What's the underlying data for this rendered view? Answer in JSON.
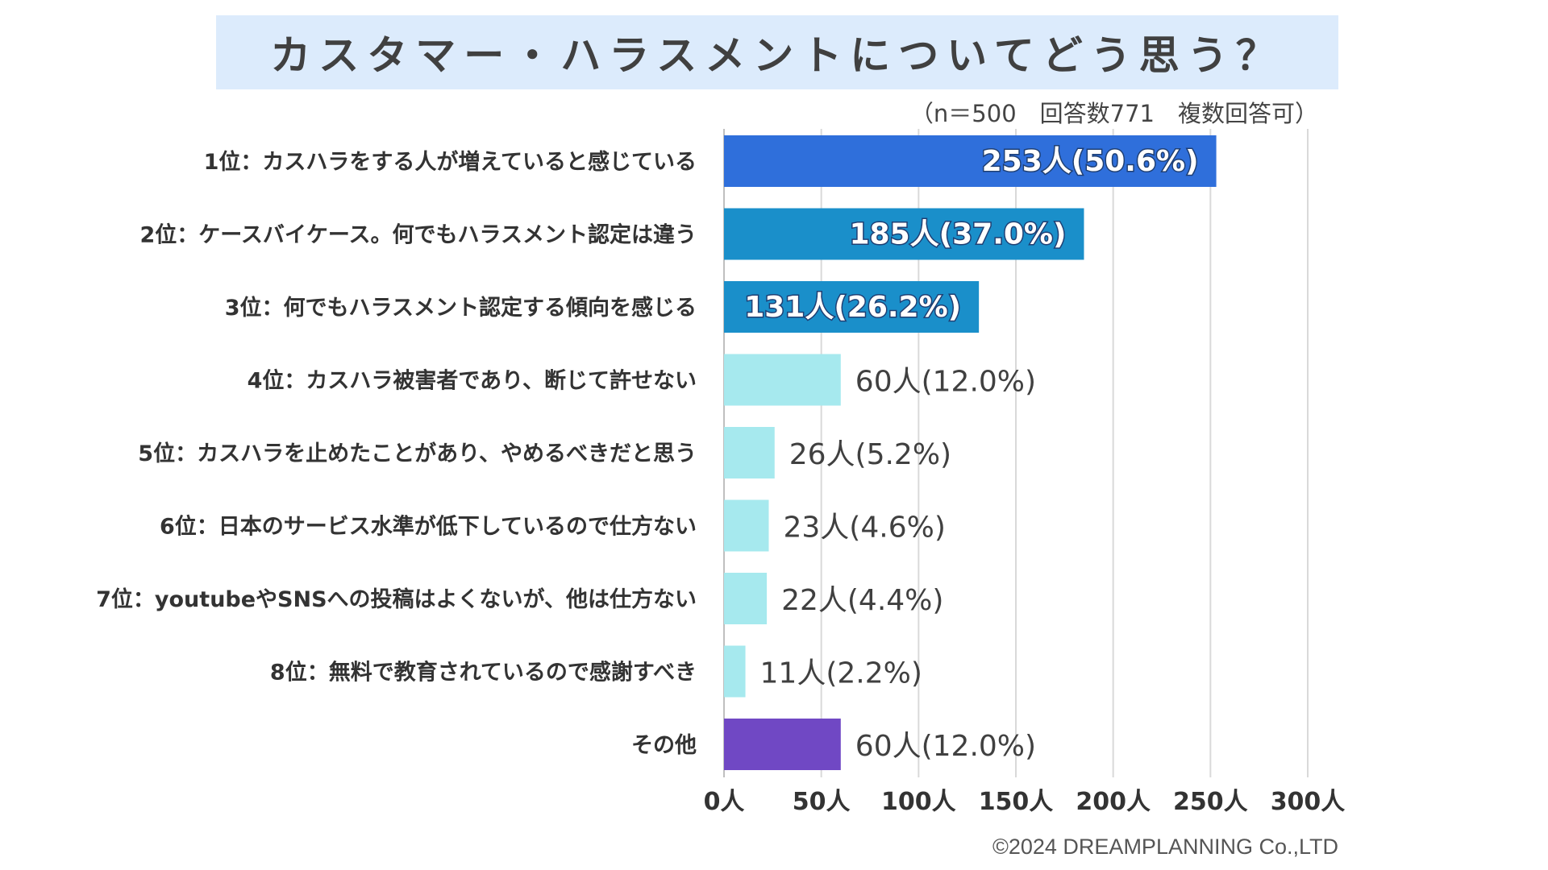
{
  "title": "カスタマー・ハラスメントについてどう思う？",
  "subtitle": "（n＝500　回答数771　複数回答可）",
  "copyright": "©2024 DREAMPLANNING Co.,LTD",
  "colors": {
    "rank1": "#2f6fdb",
    "rank2_3": "#1a8fca",
    "rest": "#a6e9ee",
    "other": "#7048c4",
    "grid": "#d9d9d9",
    "title_bg": "#dcebfc"
  },
  "chart_data": {
    "type": "bar",
    "orientation": "horizontal",
    "categories": [
      "1位：カスハラをする人が増えていると感じている",
      "2位：ケースバイケース。何でもハラスメント認定は違う",
      "3位：何でもハラスメント認定する傾向を感じる",
      "4位：カスハラ被害者であり、断じて許せない",
      "5位：カスハラを止めたことがあり、やめるべきだと思う",
      "6位：日本のサービス水準が低下しているので仕方ない",
      "7位：youtubeやSNSへの投稿はよくないが、他は仕方ない",
      "8位：無料で教育されているので感謝すべき",
      "その他"
    ],
    "values": [
      253,
      185,
      131,
      60,
      26,
      23,
      22,
      11,
      60
    ],
    "data_labels": [
      "253人(50.6%)",
      "185人(37.0%)",
      "131人(26.2%)",
      "60人(12.0%)",
      "26人(5.2%)",
      "23人(4.6%)",
      "22人(4.4%)",
      "11人(2.2%)",
      "60人(12.0%)"
    ],
    "bar_colors": [
      "#2f6fdb",
      "#1a8fca",
      "#1a8fca",
      "#a6e9ee",
      "#a6e9ee",
      "#a6e9ee",
      "#a6e9ee",
      "#a6e9ee",
      "#7048c4"
    ],
    "xlim": [
      0,
      300
    ],
    "xticks": [
      0,
      50,
      100,
      150,
      200,
      250,
      300
    ],
    "xtick_labels": [
      "0人",
      "50人",
      "100人",
      "150人",
      "200人",
      "250人",
      "300人"
    ],
    "grid": true,
    "legend": false
  }
}
